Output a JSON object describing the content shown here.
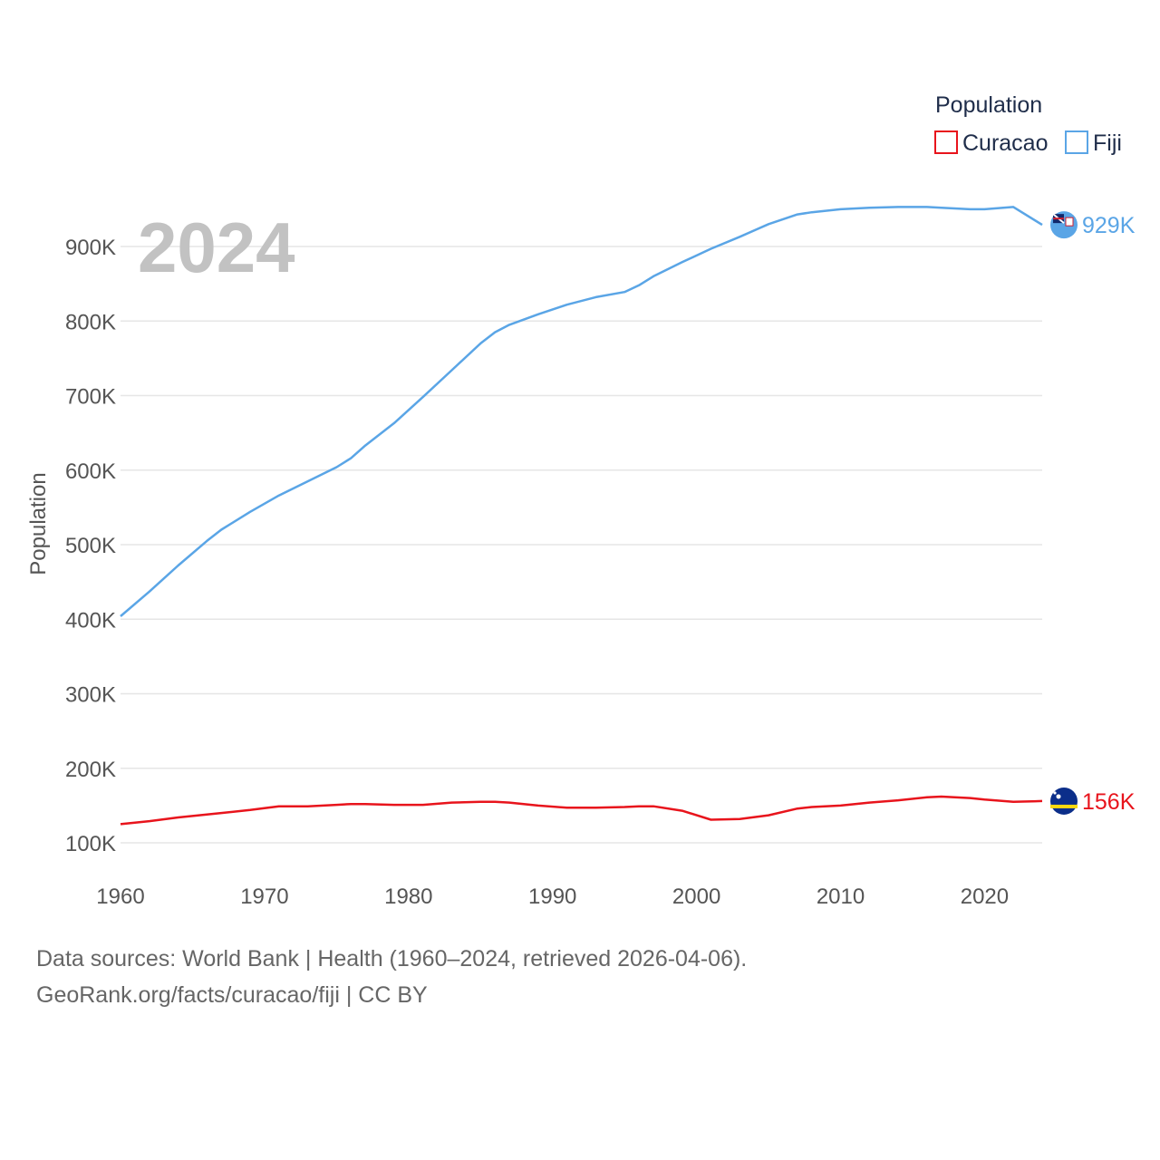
{
  "chart_data": {
    "type": "line",
    "title": "",
    "xlabel": "",
    "ylabel": "Population",
    "year_label": "2024",
    "legend_title": "Population",
    "xlim": [
      1960,
      2024
    ],
    "ylim": [
      100000,
      950000
    ],
    "x_ticks": [
      1960,
      1970,
      1980,
      1990,
      2000,
      2010,
      2020
    ],
    "y_ticks": [
      {
        "value": 100000,
        "label": "100K"
      },
      {
        "value": 200000,
        "label": "200K"
      },
      {
        "value": 300000,
        "label": "300K"
      },
      {
        "value": 400000,
        "label": "400K"
      },
      {
        "value": 500000,
        "label": "500K"
      },
      {
        "value": 600000,
        "label": "600K"
      },
      {
        "value": 700000,
        "label": "700K"
      },
      {
        "value": 800000,
        "label": "800K"
      },
      {
        "value": 900000,
        "label": "900K"
      }
    ],
    "x": [
      1960,
      1962,
      1964,
      1966,
      1967,
      1969,
      1971,
      1973,
      1975,
      1976,
      1977,
      1979,
      1981,
      1983,
      1985,
      1986,
      1987,
      1989,
      1991,
      1993,
      1995,
      1996,
      1997,
      1999,
      2001,
      2003,
      2005,
      2007,
      2008,
      2010,
      2012,
      2014,
      2016,
      2017,
      2019,
      2020,
      2022,
      2024
    ],
    "series": [
      {
        "name": "Curacao",
        "color": "#e8141c",
        "end_label": "156K",
        "flag_icon": "curacao-flag-icon",
        "values": [
          125000,
          129000,
          134000,
          138000,
          140000,
          144000,
          149000,
          149000,
          151000,
          152000,
          152000,
          151000,
          151000,
          154000,
          155000,
          155000,
          154000,
          150000,
          147000,
          147000,
          148000,
          149000,
          149000,
          143000,
          131000,
          132000,
          137000,
          146000,
          148000,
          150000,
          154000,
          157000,
          161000,
          162000,
          160000,
          158000,
          155000,
          156000
        ]
      },
      {
        "name": "Fiji",
        "color": "#5aa5e6",
        "end_label": "929K",
        "flag_icon": "fiji-flag-icon",
        "values": [
          404000,
          437000,
          472000,
          505000,
          520000,
          544000,
          566000,
          585000,
          604000,
          616000,
          633000,
          663000,
          698000,
          734000,
          770000,
          785000,
          795000,
          809000,
          822000,
          832000,
          839000,
          848000,
          860000,
          879000,
          897000,
          913000,
          930000,
          943000,
          946000,
          950000,
          952000,
          953000,
          953000,
          952000,
          950000,
          950000,
          953000,
          929000
        ]
      }
    ]
  },
  "footer": {
    "line1": "Data sources: World Bank | Health (1960–2024, retrieved 2026-04-06).",
    "line2": "GeoRank.org/facts/curacao/fiji | CC BY"
  }
}
